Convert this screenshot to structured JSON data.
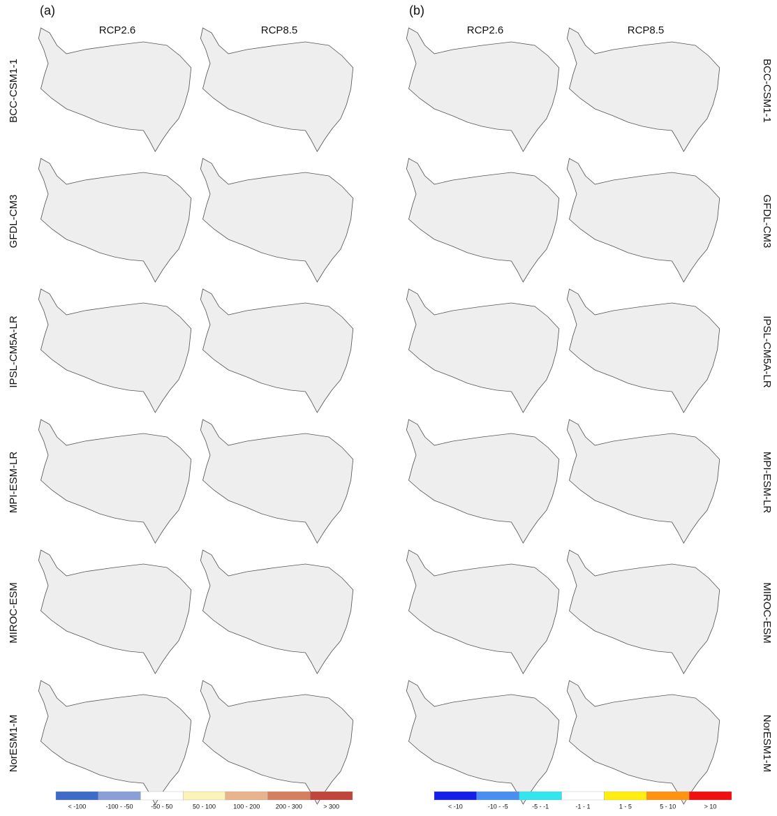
{
  "panels": [
    {
      "label": "(a)",
      "columns": [
        "RCP2.6",
        "RCP8.5"
      ],
      "legend": [
        {
          "label": "< -100",
          "color": "#3e6bc8"
        },
        {
          "label": "-100 - -50",
          "color": "#8a9fd6"
        },
        {
          "label": "-50 - 50",
          "color": "#ffffff"
        },
        {
          "label": "50 - 100",
          "color": "#fbf3b8"
        },
        {
          "label": "100 - 200",
          "color": "#e8b48e"
        },
        {
          "label": "200 - 300",
          "color": "#d47f5f"
        },
        {
          "label": "> 300",
          "color": "#c0463d"
        }
      ]
    },
    {
      "label": "(b)",
      "columns": [
        "RCP2.6",
        "RCP8.5"
      ],
      "legend": [
        {
          "label": "< -10",
          "color": "#1420e8"
        },
        {
          "label": "-10 - -5",
          "color": "#4a8ff0"
        },
        {
          "label": "-5 - -1",
          "color": "#33e6ee"
        },
        {
          "label": "-1 - 1",
          "color": "#ffffff"
        },
        {
          "label": "1 - 5",
          "color": "#ffee10"
        },
        {
          "label": "5 - 10",
          "color": "#ff9410"
        },
        {
          "label": "> 10",
          "color": "#f01010"
        }
      ]
    }
  ],
  "rows": [
    "BCC-CSM1-1",
    "GFDL-CM3",
    "IPSL-CM5A-LR",
    "MPI-ESM-LR",
    "MIROC-ESM",
    "NorESM1-M"
  ]
}
